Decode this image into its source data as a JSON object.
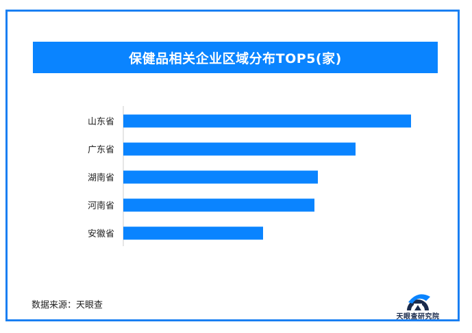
{
  "title": "保健品相关企业区域分布TOP5(家)",
  "source": "数据来源：天眼查",
  "logo_text": "天眼查研究院",
  "colors": {
    "bar": "#0a84ff",
    "frame": "#1a7ff2",
    "axis": "#cccccc",
    "logo": "#1a2b4c"
  },
  "chart_data": {
    "type": "bar",
    "orientation": "horizontal",
    "title": "保健品相关企业区域分布TOP5(家)",
    "categories": [
      "山东省",
      "广东省",
      "湖南省",
      "河南省",
      "安徽省"
    ],
    "values": [
      420,
      339,
      284,
      279,
      204
    ],
    "xlabel": "",
    "ylabel": "",
    "xlim": [
      0,
      440
    ],
    "grid": false,
    "legend": "none"
  }
}
